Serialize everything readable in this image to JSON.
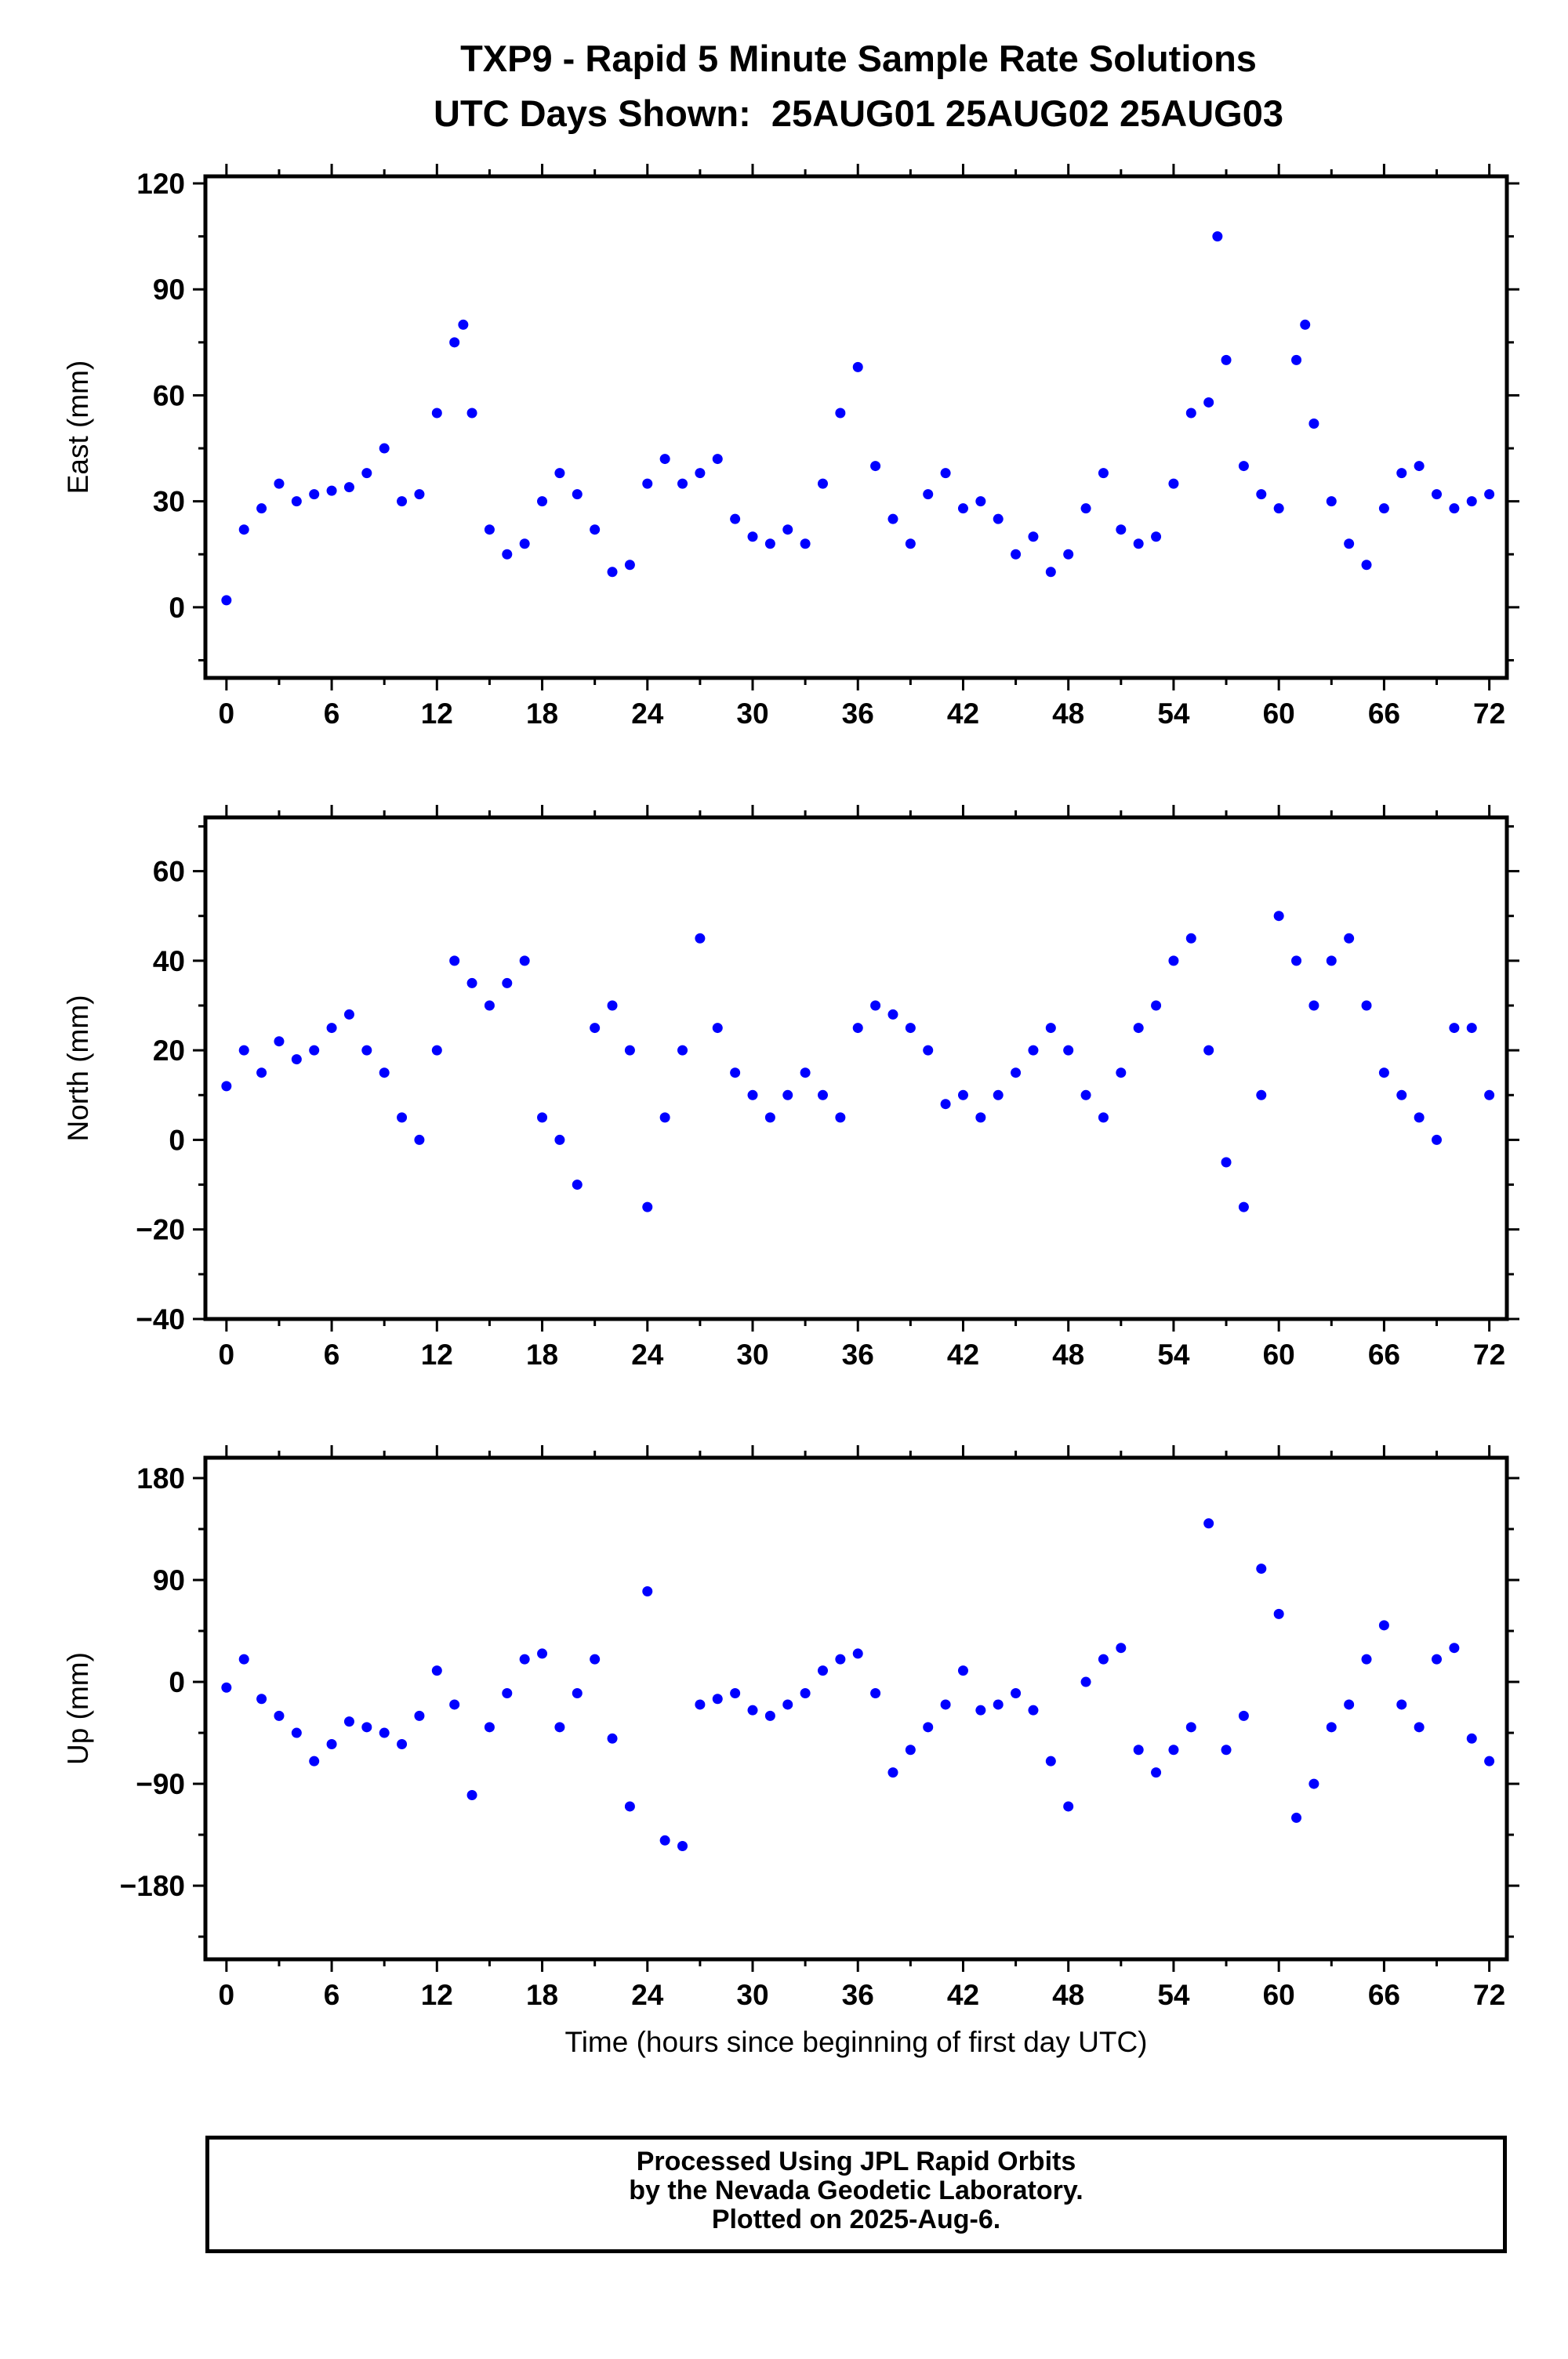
{
  "title_line1": "TXP9 - Rapid 5 Minute Sample Rate Solutions",
  "title_line2": "UTC Days Shown:  25AUG01 25AUG02 25AUG03",
  "footer": {
    "line1": "Processed Using JPL Rapid Orbits",
    "line2": "by the Nevada Geodetic Laboratory.",
    "line3": "Plotted on 2025-Aug-6."
  },
  "colors": {
    "point": "#0000ff",
    "axis": "#000000"
  },
  "chart_data": [
    {
      "type": "scatter",
      "ylabel": "East (mm)",
      "xlabel": "",
      "xlim": [
        -1.2,
        73
      ],
      "ylim": [
        -20,
        122
      ],
      "xticks": [
        0,
        6,
        12,
        18,
        24,
        30,
        36,
        42,
        48,
        54,
        60,
        66,
        72
      ],
      "yticks": [
        0,
        30,
        60,
        90,
        120
      ],
      "yticklabels": [
        "0",
        "30",
        "60",
        "90",
        "120"
      ],
      "x": [
        0,
        1,
        2,
        3,
        4,
        5,
        6,
        7,
        8,
        9,
        10,
        11,
        12,
        13,
        13.5,
        14,
        15,
        16,
        17,
        18,
        19,
        20,
        21,
        22,
        23,
        24,
        25,
        26,
        27,
        28,
        29,
        30,
        31,
        32,
        33,
        34,
        35,
        36,
        37,
        38,
        39,
        40,
        41,
        42,
        43,
        44,
        45,
        46,
        47,
        48,
        49,
        50,
        51,
        52,
        53,
        54,
        55,
        56,
        56.5,
        57,
        58,
        59,
        60,
        61,
        61.5,
        62,
        63,
        64,
        65,
        66,
        67,
        68,
        69,
        70,
        71,
        72
      ],
      "y": [
        2,
        22,
        28,
        35,
        30,
        32,
        33,
        34,
        38,
        45,
        30,
        32,
        55,
        75,
        80,
        55,
        22,
        15,
        18,
        30,
        38,
        32,
        22,
        10,
        12,
        35,
        42,
        35,
        38,
        42,
        25,
        20,
        18,
        22,
        18,
        35,
        55,
        68,
        40,
        25,
        18,
        32,
        38,
        28,
        30,
        25,
        15,
        20,
        10,
        15,
        28,
        38,
        22,
        18,
        20,
        35,
        55,
        58,
        105,
        70,
        40,
        32,
        28,
        70,
        80,
        52,
        30,
        18,
        12,
        28,
        38,
        40,
        32,
        28,
        30,
        32
      ]
    },
    {
      "type": "scatter",
      "ylabel": "North (mm)",
      "xlabel": "",
      "xlim": [
        -1.2,
        73
      ],
      "ylim": [
        -40,
        72
      ],
      "xticks": [
        0,
        6,
        12,
        18,
        24,
        30,
        36,
        42,
        48,
        54,
        60,
        66,
        72
      ],
      "yticks": [
        -40,
        -20,
        0,
        20,
        40,
        60
      ],
      "yticklabels": [
        "−40",
        "−20",
        "0",
        "20",
        "40",
        "60"
      ],
      "x": [
        0,
        1,
        2,
        3,
        4,
        5,
        6,
        7,
        8,
        9,
        10,
        11,
        12,
        13,
        14,
        15,
        16,
        17,
        18,
        19,
        20,
        21,
        22,
        23,
        24,
        25,
        26,
        27,
        28,
        29,
        30,
        31,
        32,
        33,
        34,
        35,
        36,
        37,
        38,
        39,
        40,
        41,
        42,
        43,
        44,
        45,
        46,
        47,
        48,
        49,
        50,
        51,
        52,
        53,
        54,
        55,
        56,
        57,
        58,
        59,
        60,
        61,
        62,
        63,
        64,
        65,
        66,
        67,
        68,
        69,
        70,
        71,
        72
      ],
      "y": [
        12,
        20,
        15,
        22,
        18,
        20,
        25,
        28,
        20,
        15,
        5,
        0,
        20,
        40,
        35,
        30,
        35,
        40,
        5,
        0,
        -10,
        25,
        30,
        20,
        -15,
        5,
        20,
        45,
        25,
        15,
        10,
        5,
        10,
        15,
        10,
        5,
        25,
        30,
        28,
        25,
        20,
        8,
        10,
        5,
        10,
        15,
        20,
        25,
        20,
        10,
        5,
        15,
        25,
        30,
        40,
        45,
        20,
        -5,
        -15,
        10,
        50,
        40,
        30,
        40,
        45,
        30,
        15,
        10,
        5,
        0,
        25,
        25,
        10
      ]
    },
    {
      "type": "scatter",
      "ylabel": "Up (mm)",
      "xlabel": "Time (hours since beginning of first day UTC)",
      "xlim": [
        -1.2,
        73
      ],
      "ylim": [
        -245,
        198
      ],
      "xticks": [
        0,
        6,
        12,
        18,
        24,
        30,
        36,
        42,
        48,
        54,
        60,
        66,
        72
      ],
      "yticks": [
        -180,
        -90,
        0,
        90,
        180
      ],
      "yticklabels": [
        "−180",
        "−90",
        "0",
        "90",
        "180"
      ],
      "x": [
        0,
        1,
        2,
        3,
        4,
        5,
        6,
        7,
        8,
        9,
        10,
        11,
        12,
        13,
        14,
        15,
        16,
        17,
        18,
        19,
        20,
        21,
        22,
        23,
        24,
        25,
        26,
        27,
        28,
        29,
        30,
        31,
        32,
        33,
        34,
        35,
        36,
        37,
        38,
        39,
        40,
        41,
        42,
        43,
        44,
        45,
        46,
        47,
        48,
        49,
        50,
        51,
        52,
        53,
        54,
        55,
        56,
        57,
        58,
        59,
        60,
        61,
        62,
        63,
        64,
        65,
        66,
        67,
        68,
        69,
        70,
        71,
        72
      ],
      "y": [
        -5,
        20,
        -15,
        -30,
        -45,
        -70,
        -55,
        -35,
        -40,
        -45,
        -55,
        -30,
        10,
        -20,
        -100,
        -40,
        -10,
        20,
        25,
        -40,
        -10,
        20,
        -50,
        -110,
        80,
        -140,
        -145,
        -20,
        -15,
        -10,
        -25,
        -30,
        -20,
        -10,
        10,
        20,
        25,
        -10,
        -80,
        -60,
        -40,
        -20,
        10,
        -25,
        -20,
        -10,
        -25,
        -70,
        -110,
        0,
        20,
        30,
        -60,
        -80,
        -60,
        -40,
        140,
        -60,
        -30,
        100,
        60,
        -120,
        -90,
        -40,
        -20,
        20,
        50,
        -20,
        -40,
        20,
        30,
        -50,
        -70
      ]
    }
  ]
}
